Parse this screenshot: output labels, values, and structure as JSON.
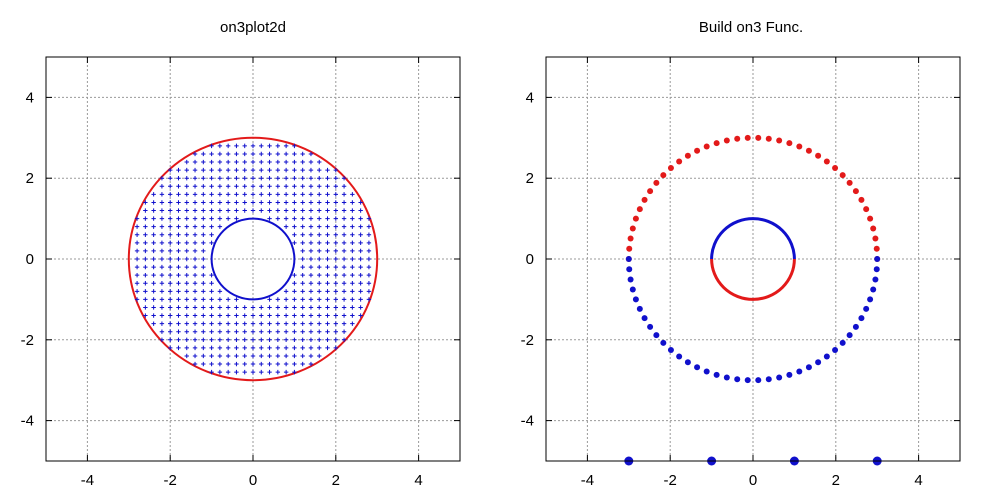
{
  "colors": {
    "red": "#e31a1a",
    "blue": "#1010cc",
    "grid": "#9a9a9a"
  },
  "chart_data": [
    {
      "type": "line",
      "title": "on3plot2d",
      "xlim": [
        -5,
        5
      ],
      "ylim": [
        -5,
        5
      ],
      "xticks": [
        -4,
        -2,
        0,
        2,
        4
      ],
      "yticks": [
        -4,
        -2,
        0,
        2,
        4
      ],
      "grid": true,
      "series": [
        {
          "kind": "outer-circle",
          "center": [
            0,
            0
          ],
          "radius": 3,
          "color": "#e31a1a"
        },
        {
          "kind": "inner-circle",
          "center": [
            0,
            0
          ],
          "radius": 1,
          "color": "#1010cc"
        },
        {
          "kind": "mesh",
          "inner_radius": 1,
          "outer_radius": 3,
          "spacing": 0.2,
          "color": "#1010cc"
        }
      ]
    },
    {
      "type": "scatter",
      "title": "Build on3 Func.",
      "xlim": [
        -5,
        5
      ],
      "ylim": [
        -5,
        5
      ],
      "xticks": [
        -4,
        -2,
        0,
        2,
        4
      ],
      "yticks": [
        -4,
        -2,
        0,
        2,
        4
      ],
      "grid": true,
      "series": [
        {
          "kind": "outer-points-upper",
          "radius": 3,
          "count": 38,
          "color": "#e31a1a"
        },
        {
          "kind": "outer-points-lower",
          "radius": 3,
          "count": 38,
          "color": "#1010cc"
        },
        {
          "kind": "inner-arc-upper",
          "radius": 1,
          "color": "#1010cc"
        },
        {
          "kind": "inner-arc-lower",
          "radius": 1,
          "color": "#e31a1a"
        },
        {
          "kind": "baseline-points",
          "x": [
            -3,
            -1,
            1,
            3
          ],
          "y": [
            -5,
            -5,
            -5,
            -5
          ],
          "color": "#1010cc"
        }
      ]
    }
  ]
}
